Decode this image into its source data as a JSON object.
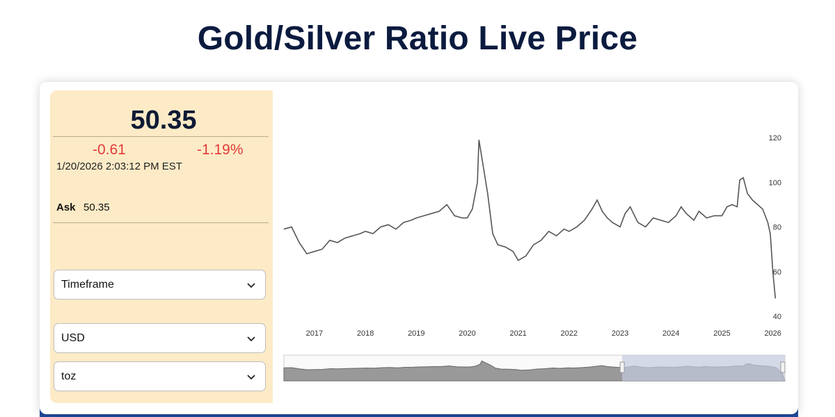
{
  "page": {
    "title": "Gold/Silver Ratio Live Price"
  },
  "quote": {
    "price": "50.35",
    "change": "-0.61",
    "change_percent": "-1.19%",
    "timestamp": "1/20/2026 2:03:12 PM EST",
    "ask_label": "Ask",
    "ask_value": "50.35"
  },
  "controls": {
    "timeframe": "Timeframe",
    "currency": "USD",
    "unit": "toz"
  },
  "colors": {
    "down": "#e23b3b",
    "panel": "#fdebc7",
    "line": "#555555",
    "navigator_fill": "#999999",
    "navigator_selection": "#c3cbe0"
  },
  "chart_data": {
    "type": "line",
    "title": "",
    "xlabel": "",
    "ylabel": "",
    "ylim": [
      40,
      120
    ],
    "yticks": [
      120,
      100,
      80,
      60,
      40
    ],
    "xlim": [
      2016.4,
      2026.1
    ],
    "xticks": [
      2017,
      2018,
      2019,
      2020,
      2021,
      2022,
      2023,
      2024,
      2025,
      2026
    ],
    "series": [
      {
        "name": "Gold/Silver Ratio",
        "x": [
          2016.4,
          2016.55,
          2016.7,
          2016.85,
          2017.0,
          2017.15,
          2017.3,
          2017.45,
          2017.6,
          2017.75,
          2017.9,
          2018.0,
          2018.15,
          2018.3,
          2018.45,
          2018.6,
          2018.75,
          2018.9,
          2019.0,
          2019.15,
          2019.3,
          2019.45,
          2019.6,
          2019.75,
          2019.9,
          2020.0,
          2020.1,
          2020.2,
          2020.23,
          2020.3,
          2020.4,
          2020.5,
          2020.6,
          2020.75,
          2020.9,
          2021.0,
          2021.15,
          2021.3,
          2021.45,
          2021.6,
          2021.75,
          2021.9,
          2022.0,
          2022.15,
          2022.3,
          2022.45,
          2022.55,
          2022.65,
          2022.75,
          2022.85,
          2023.0,
          2023.1,
          2023.2,
          2023.35,
          2023.5,
          2023.65,
          2023.8,
          2023.95,
          2024.1,
          2024.2,
          2024.3,
          2024.45,
          2024.55,
          2024.7,
          2024.85,
          2025.0,
          2025.1,
          2025.2,
          2025.3,
          2025.35,
          2025.42,
          2025.5,
          2025.6,
          2025.7,
          2025.8,
          2025.85,
          2025.9,
          2025.95,
          2026.0,
          2026.05
        ],
        "y": [
          79,
          80,
          73,
          68,
          69,
          70,
          74,
          73,
          75,
          76,
          77,
          78,
          77,
          80,
          81,
          79,
          82,
          83,
          84,
          85,
          86,
          87,
          90,
          85,
          84,
          84,
          88,
          100,
          119,
          109,
          95,
          77,
          72,
          71,
          69,
          65,
          67,
          72,
          74,
          78,
          76,
          79,
          78,
          80,
          83,
          88,
          92,
          87,
          84,
          82,
          80,
          86,
          89,
          82,
          80,
          84,
          83,
          82,
          85,
          89,
          86,
          83,
          87,
          84,
          85,
          85,
          89,
          90,
          89,
          101,
          102,
          95,
          92,
          90,
          88,
          85,
          82,
          77,
          60,
          48
        ]
      }
    ]
  }
}
